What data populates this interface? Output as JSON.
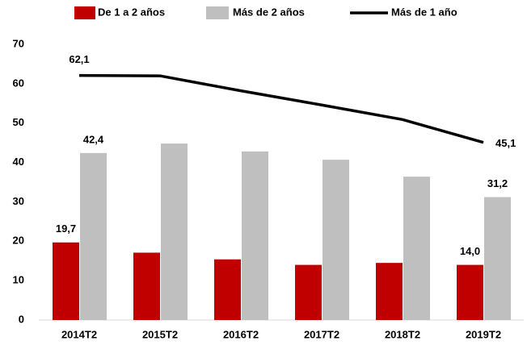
{
  "chart_data": {
    "type": "bar",
    "categories": [
      "2014T2",
      "2015T2",
      "2016T2",
      "2017T2",
      "2018T2",
      "2019T2"
    ],
    "series": [
      {
        "name": "De 1 a 2 años",
        "color": "#c00000",
        "values": [
          19.7,
          17.1,
          15.4,
          14.0,
          14.5,
          14.0
        ],
        "value_labels": [
          "19,7",
          null,
          null,
          null,
          null,
          "14,0"
        ]
      },
      {
        "name": "Más de 2 años",
        "color": "#bfbfbf",
        "values": [
          42.4,
          44.8,
          42.8,
          40.7,
          36.4,
          31.2
        ],
        "value_labels": [
          "42,4",
          null,
          null,
          null,
          null,
          "31,2"
        ]
      },
      {
        "name": "Más de 1 año",
        "type": "line",
        "color": "#000000",
        "values": [
          62.1,
          62.0,
          58.2,
          54.6,
          50.9,
          45.1
        ],
        "value_labels": [
          "62,1",
          null,
          null,
          null,
          null,
          "45,1"
        ]
      }
    ],
    "ylim": [
      0,
      70
    ],
    "yticks": [
      0,
      10,
      20,
      30,
      40,
      50,
      60,
      70
    ],
    "grid": false,
    "legend": "top"
  }
}
